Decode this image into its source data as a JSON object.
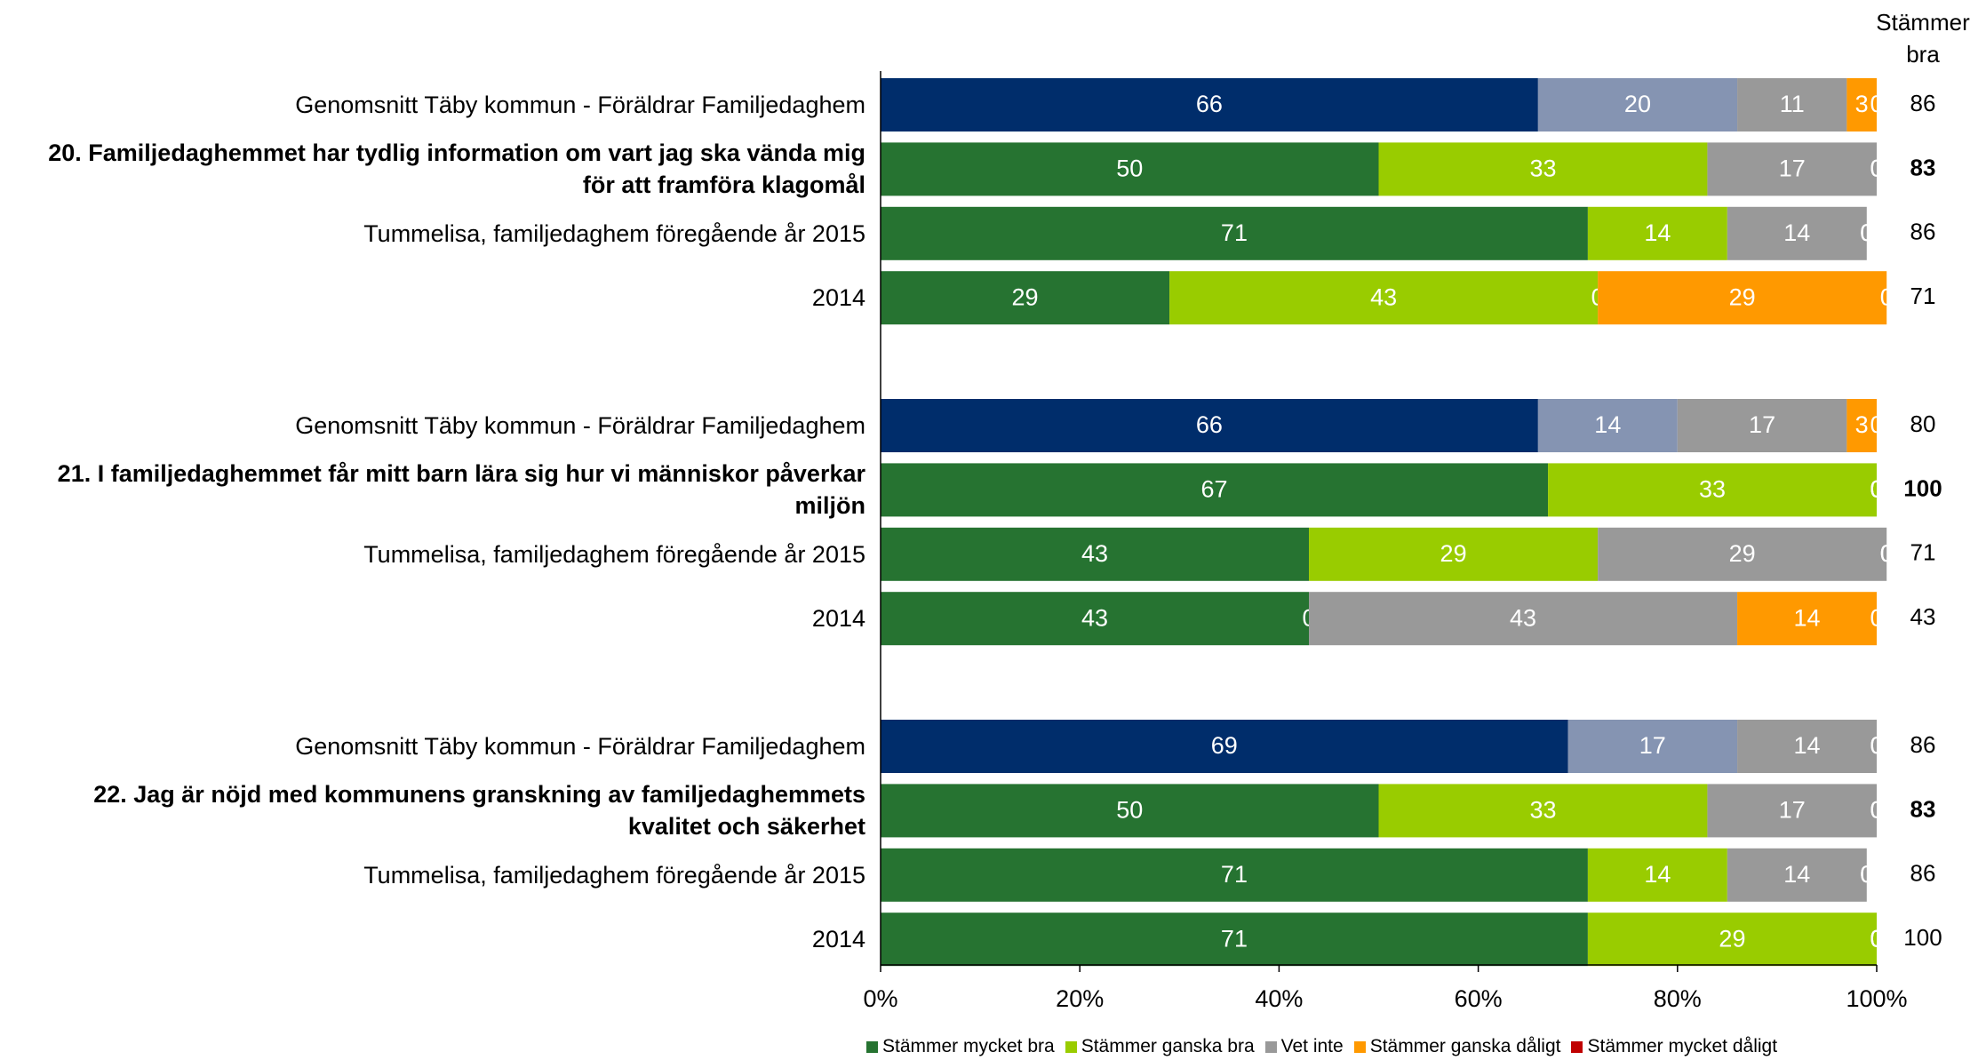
{
  "chart_data": {
    "type": "stacked_barh",
    "categories": [
      "Genomsnitt Täby kommun - Föräldrar Familjedaghem",
      "20. Familjedaghemmet har tydlig information om vart jag ska vända mig för att framföra klagomål",
      "Tummelisa, familjedaghem föregående år 2015",
      "2014",
      "Genomsnitt Täby kommun - Föräldrar Familjedaghem",
      "21. I familjedaghemmet får mitt barn lära sig hur vi människor påverkar miljön",
      "Tummelisa, familjedaghem föregående år 2015",
      "2014",
      "Genomsnitt Täby kommun - Föräldrar Familjedaghem",
      "22. Jag är nöjd med kommunens granskning av familjedaghemmets kvalitet och säkerhet",
      "Tummelisa, familjedaghem föregående år 2015",
      "2014"
    ],
    "series": [
      {
        "name": "Stämmer mycket bra",
        "color": "#267331",
        "values": [
          66,
          50,
          71,
          29,
          66,
          67,
          43,
          43,
          69,
          50,
          71,
          71
        ],
        "colors": [
          "#002d6b",
          "#267331",
          "#267331",
          "#267331",
          "#002d6b",
          "#267331",
          "#267331",
          "#267331",
          "#002d6b",
          "#267331",
          "#267331",
          "#267331"
        ]
      },
      {
        "name": "Stämmer ganska bra",
        "color": "#99cc00",
        "values": [
          20,
          33,
          14,
          43,
          14,
          33,
          29,
          0,
          17,
          33,
          14,
          29
        ],
        "colors": [
          "#8594b2",
          "#99cc00",
          "#99cc00",
          "#99cc00",
          "#8594b2",
          "#99cc00",
          "#99cc00",
          "#99cc00",
          "#8594b2",
          "#99cc00",
          "#99cc00",
          "#99cc00"
        ]
      },
      {
        "name": "Vet inte",
        "color": "#999999",
        "values": [
          11,
          17,
          14,
          0,
          17,
          0,
          29,
          43,
          14,
          17,
          14,
          0
        ],
        "colors": [
          "#999999",
          "#999999",
          "#999999",
          "#999999",
          "#999999",
          "#999999",
          "#999999",
          "#999999",
          "#999999",
          "#999999",
          "#999999",
          "#999999"
        ]
      },
      {
        "name": "Stämmer ganska dåligt",
        "color": "#ff9900",
        "values": [
          3,
          0,
          0,
          29,
          3,
          0,
          0,
          14,
          0,
          0,
          0,
          0
        ],
        "colors": [
          "#ff9900",
          "#ff9900",
          "#ff9900",
          "#ff9900",
          "#ff9900",
          "#ff9900",
          "#ff9900",
          "#ff9900",
          "#ff9900",
          "#ff9900",
          "#ff9900",
          "#ff9900"
        ]
      },
      {
        "name": "Stämmer mycket dåligt",
        "color": "#c00000",
        "values": [
          0,
          0,
          0,
          0,
          0,
          0,
          0,
          0,
          0,
          0,
          0,
          0
        ],
        "colors": [
          "#c00000",
          "#c00000",
          "#c00000",
          "#c00000",
          "#c00000",
          "#c00000",
          "#c00000",
          "#c00000",
          "#c00000",
          "#c00000",
          "#c00000",
          "#c00000"
        ]
      }
    ],
    "right_header": [
      "Stämmer",
      "bra"
    ],
    "right_values": [
      86,
      83,
      86,
      71,
      80,
      100,
      71,
      43,
      86,
      83,
      86,
      100
    ],
    "xlim": [
      0,
      100
    ],
    "xticks": [
      {
        "value": 0,
        "label": "0%"
      },
      {
        "value": 20,
        "label": "20%"
      },
      {
        "value": 40,
        "label": "40%"
      },
      {
        "value": 60,
        "label": "60%"
      },
      {
        "value": 80,
        "label": "80%"
      },
      {
        "value": 100,
        "label": "100%"
      }
    ],
    "legend": "bottom"
  }
}
